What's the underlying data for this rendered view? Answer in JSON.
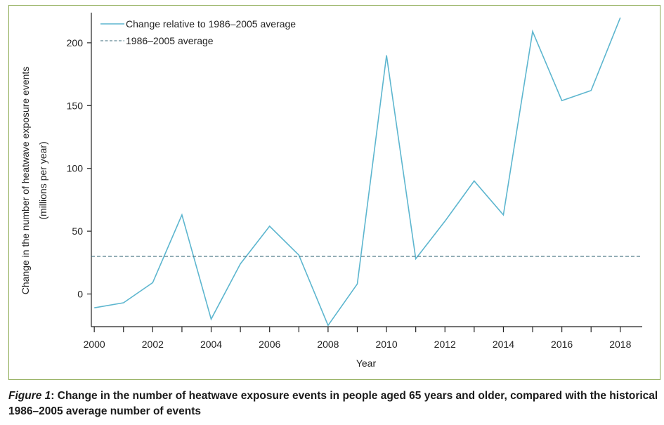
{
  "figure": {
    "caption_label": "Figure 1",
    "caption_text": ": Change in the number of heatwave exposure events in people aged 65 years and older, compared with the historical 1986–2005 average number of events"
  },
  "chart_data": {
    "type": "line",
    "title": "",
    "xlabel": "Year",
    "ylabel": "Change in the number of heatwave exposure events",
    "ylabel_units": "(millions per year)",
    "xlim": [
      1999.9,
      2018.75
    ],
    "ylim": [
      -26,
      224
    ],
    "x_ticks": [
      2000,
      2001,
      2002,
      2003,
      2004,
      2005,
      2006,
      2007,
      2008,
      2009,
      2010,
      2011,
      2012,
      2013,
      2014,
      2015,
      2016,
      2017,
      2018
    ],
    "x_tick_labels": [
      "2000",
      "2002",
      "2004",
      "2006",
      "2008",
      "2010",
      "2012",
      "2014",
      "2016",
      "2018"
    ],
    "x_tick_label_values": [
      2000,
      2002,
      2004,
      2006,
      2008,
      2010,
      2012,
      2014,
      2016,
      2018
    ],
    "y_ticks": [
      0,
      50,
      100,
      150,
      200
    ],
    "y_tick_labels": [
      "0",
      "50",
      "100",
      "150",
      "200"
    ],
    "grid": false,
    "legend_position": "top-left",
    "series": [
      {
        "name": "Change relative to 1986–2005 average",
        "color": "#5db6cf",
        "style": "solid",
        "x": [
          2000,
          2001,
          2002,
          2003,
          2004,
          2005,
          2006,
          2007,
          2008,
          2009,
          2010,
          2011,
          2012,
          2013,
          2014,
          2015,
          2016,
          2017,
          2018
        ],
        "values": [
          -11,
          -7,
          9,
          63,
          -20,
          24,
          54,
          31,
          -25,
          8,
          190,
          28,
          58,
          90,
          63,
          209,
          154,
          162,
          220
        ]
      },
      {
        "name": "1986–2005 average",
        "color": "#3a6a7a",
        "style": "dashed",
        "x": [
          1999.9,
          2018.75
        ],
        "values": [
          30,
          30
        ]
      }
    ]
  }
}
